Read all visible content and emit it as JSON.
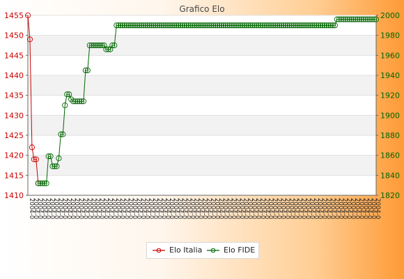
{
  "chart_data": {
    "type": "line",
    "title": "Grafico Elo",
    "x_count": 170,
    "left_axis": {
      "ylim": [
        1410,
        1455
      ],
      "ticks": [
        1410,
        1415,
        1420,
        1425,
        1430,
        1435,
        1440,
        1445,
        1450,
        1455
      ],
      "color": "#cc0000"
    },
    "right_axis": {
      "ylim": [
        1820,
        2000
      ],
      "ticks": [
        1820,
        1840,
        1860,
        1880,
        1900,
        1920,
        1940,
        1960,
        1980,
        2000
      ],
      "color": "#006600"
    },
    "grid": true,
    "legend_position": "bottom",
    "series": [
      {
        "name": "Elo Italia",
        "axis": "left",
        "color": "#cc0000",
        "x": [
          0,
          1,
          2,
          3,
          4,
          5
        ],
        "y": [
          1455,
          1449,
          1422,
          1419,
          1419,
          1413
        ]
      },
      {
        "name": "Elo FIDE",
        "axis": "right",
        "color": "#006600",
        "points": [
          [
            5,
            1832
          ],
          [
            9,
            1832
          ],
          [
            10,
            1859
          ],
          [
            11,
            1859
          ],
          [
            12,
            1849
          ],
          [
            14,
            1849
          ],
          [
            15,
            1857
          ],
          [
            16,
            1881
          ],
          [
            17,
            1881
          ],
          [
            18,
            1910
          ],
          [
            19,
            1921
          ],
          [
            20,
            1921
          ],
          [
            21,
            1916
          ],
          [
            22,
            1914
          ],
          [
            27,
            1914
          ],
          [
            28,
            1945
          ],
          [
            29,
            1945
          ],
          [
            30,
            1970
          ],
          [
            37,
            1970
          ],
          [
            38,
            1966
          ],
          [
            40,
            1966
          ],
          [
            41,
            1970
          ],
          [
            42,
            1970
          ],
          [
            43,
            1990
          ],
          [
            149,
            1990
          ],
          [
            150,
            1996
          ],
          [
            169,
            1996
          ]
        ]
      }
    ],
    "x_tick_text": "2004-0"
  }
}
